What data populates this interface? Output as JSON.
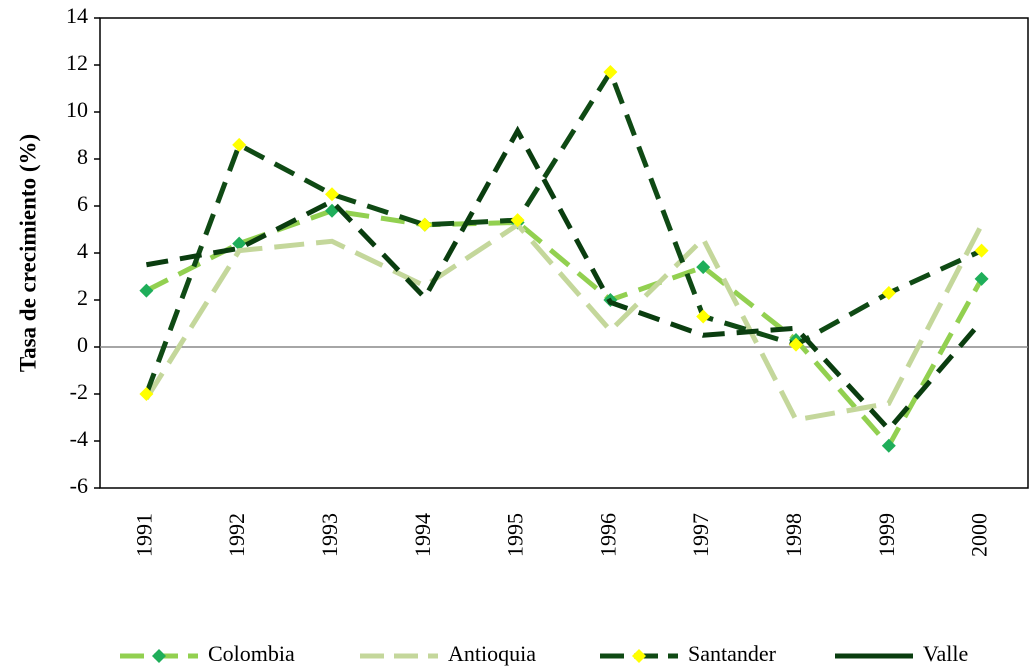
{
  "chart_data": {
    "type": "line",
    "y_label": "Tasa de crecimiento (%)",
    "categories": [
      "1991",
      "1992",
      "1993",
      "1994",
      "1995",
      "1996",
      "1997",
      "1998",
      "1999",
      "2000"
    ],
    "series": [
      {
        "name": "Colombia",
        "color": "#92d050",
        "marker_color": "#1fae5a",
        "values": [
          2.4,
          4.4,
          5.8,
          5.2,
          5.3,
          2.0,
          3.4,
          0.3,
          -4.2,
          2.9
        ]
      },
      {
        "name": "Antioquia",
        "color": "#c4d79b",
        "values": [
          -2.2,
          4.1,
          4.5,
          2.6,
          5.2,
          0.7,
          4.6,
          -3.1,
          -2.4,
          5.2
        ]
      },
      {
        "name": "Santander",
        "color": "#0f4a14",
        "marker_color": "#ffff00",
        "values": [
          -2.0,
          8.6,
          6.5,
          5.2,
          5.4,
          11.7,
          1.3,
          0.1,
          2.3,
          4.1
        ]
      },
      {
        "name": "Valle",
        "color": "#0a3d0f",
        "values": [
          3.5,
          4.2,
          6.2,
          2.1,
          9.2,
          1.9,
          0.5,
          0.8,
          -3.5,
          1.1
        ]
      }
    ],
    "ylim": [
      -6,
      14
    ],
    "yticks": [
      -6,
      -4,
      -2,
      0,
      2,
      4,
      6,
      8,
      10,
      12,
      14
    ]
  }
}
